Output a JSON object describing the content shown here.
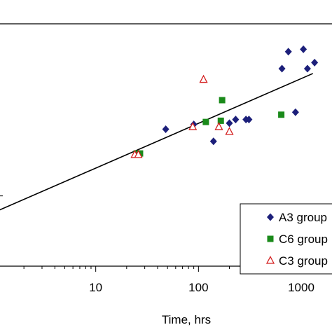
{
  "chart_data": {
    "type": "scatter",
    "xscale": "log",
    "xlim": [
      1,
      3000
    ],
    "ylim": [
      0,
      100
    ],
    "xlabel": "Time, hrs",
    "xticks": [
      {
        "value": 10,
        "label": "10"
      },
      {
        "value": 100,
        "label": "100"
      },
      {
        "value": 1000,
        "label": "1000"
      }
    ],
    "grid": false,
    "legend_position": "bottom-right",
    "series": [
      {
        "name": "A3 group",
        "marker": "diamond",
        "color": "#1c1f7a",
        "points": [
          [
            48,
            56.5
          ],
          [
            90,
            58.5
          ],
          [
            140,
            51.5
          ],
          [
            200,
            59
          ],
          [
            230,
            60.5
          ],
          [
            290,
            60.5
          ],
          [
            310,
            60.5
          ],
          [
            650,
            81.5
          ],
          [
            750,
            88.5
          ],
          [
            880,
            63.5
          ],
          [
            1050,
            89.5
          ],
          [
            1150,
            81.5
          ],
          [
            1350,
            84
          ]
        ]
      },
      {
        "name": "C6 group",
        "marker": "square",
        "color": "#1a8a1a",
        "points": [
          [
            25,
            46.5
          ],
          [
            27,
            46.5
          ],
          [
            118,
            59.5
          ],
          [
            165,
            60
          ],
          [
            170,
            68.5
          ],
          [
            640,
            62.5
          ]
        ]
      },
      {
        "name": "C3 group",
        "marker": "triangle-open",
        "color": "#d42020",
        "points": [
          [
            24,
            46
          ],
          [
            26,
            46
          ],
          [
            88,
            57.5
          ],
          [
            112,
            77
          ],
          [
            158,
            57.5
          ],
          [
            200,
            55.5
          ]
        ]
      },
      {
        "name": "",
        "marker": "none",
        "color": "#000000",
        "line": [
          [
            1,
            22
          ],
          [
            1300,
            79.5
          ]
        ]
      }
    ]
  }
}
